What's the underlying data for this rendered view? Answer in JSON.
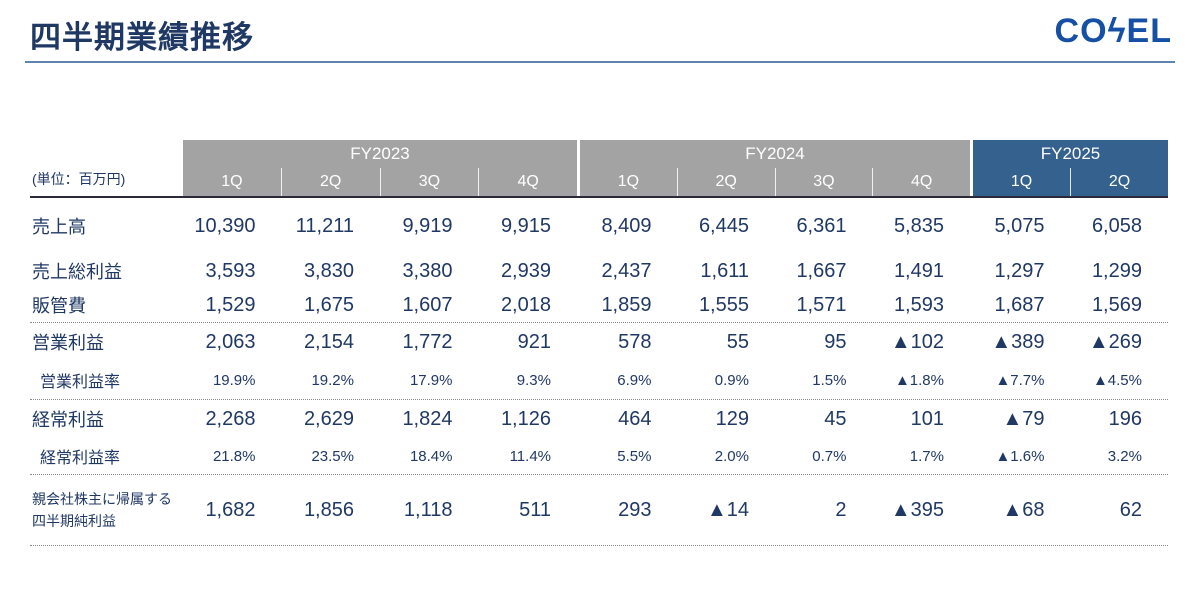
{
  "slide": {
    "title": "四半期業績推移",
    "logo": {
      "text": "COSEL",
      "prefix": "CO",
      "bolt": "ϟ",
      "suffix": "EL"
    }
  },
  "colors": {
    "title_navy": "#1f3864",
    "text_navy": "#203864",
    "rule_blue": "#5e83ad",
    "logo_blue": "#1550a5",
    "gray_header": "#a3a3a3",
    "blue_header": "#35618f"
  },
  "table": {
    "unit_label": "(単位：百万円)",
    "negative_marker": "▲",
    "column_groups": [
      {
        "label": "FY2023",
        "theme": "gray",
        "quarters": [
          "1Q",
          "2Q",
          "3Q",
          "4Q"
        ]
      },
      {
        "label": "FY2024",
        "theme": "gray",
        "quarters": [
          "1Q",
          "2Q",
          "3Q",
          "4Q"
        ]
      },
      {
        "label": "FY2025",
        "theme": "blue",
        "quarters": [
          "1Q",
          "2Q"
        ]
      }
    ],
    "rows": [
      {
        "label": "売上高",
        "kind": "value",
        "values": [
          "10,390",
          "11,211",
          "9,919",
          "9,915",
          "8,409",
          "6,445",
          "6,361",
          "5,835",
          "5,075",
          "6,058"
        ]
      },
      {
        "label": "売上総利益",
        "kind": "value",
        "values": [
          "3,593",
          "3,830",
          "3,380",
          "2,939",
          "2,437",
          "1,611",
          "1,667",
          "1,491",
          "1,297",
          "1,299"
        ]
      },
      {
        "label": "販管費",
        "kind": "value",
        "values": [
          "1,529",
          "1,675",
          "1,607",
          "2,018",
          "1,859",
          "1,555",
          "1,571",
          "1,593",
          "1,687",
          "1,569"
        ]
      },
      {
        "label": "営業利益",
        "kind": "value",
        "values": [
          "2,063",
          "2,154",
          "1,772",
          "921",
          "578",
          "55",
          "95",
          "▲102",
          "▲389",
          "▲269"
        ]
      },
      {
        "label": "営業利益率",
        "kind": "rate",
        "values": [
          "19.9%",
          "19.2%",
          "17.9%",
          "9.3%",
          "6.9%",
          "0.9%",
          "1.5%",
          "▲1.8%",
          "▲7.7%",
          "▲4.5%"
        ]
      },
      {
        "label": "経常利益",
        "kind": "value",
        "values": [
          "2,268",
          "2,629",
          "1,824",
          "1,126",
          "464",
          "129",
          "45",
          "101",
          "▲79",
          "196"
        ]
      },
      {
        "label": "経常利益率",
        "kind": "rate",
        "values": [
          "21.8%",
          "23.5%",
          "18.4%",
          "11.4%",
          "5.5%",
          "2.0%",
          "0.7%",
          "1.7%",
          "▲1.6%",
          "3.2%"
        ]
      },
      {
        "label": "親会社株主に帰属する四半期純利益",
        "kind": "value",
        "label_lines": [
          "親会社株主に帰属する",
          "四半期純利益"
        ],
        "values": [
          "1,682",
          "1,856",
          "1,118",
          "511",
          "293",
          "▲14",
          "2",
          "▲395",
          "▲68",
          "62"
        ]
      }
    ]
  }
}
